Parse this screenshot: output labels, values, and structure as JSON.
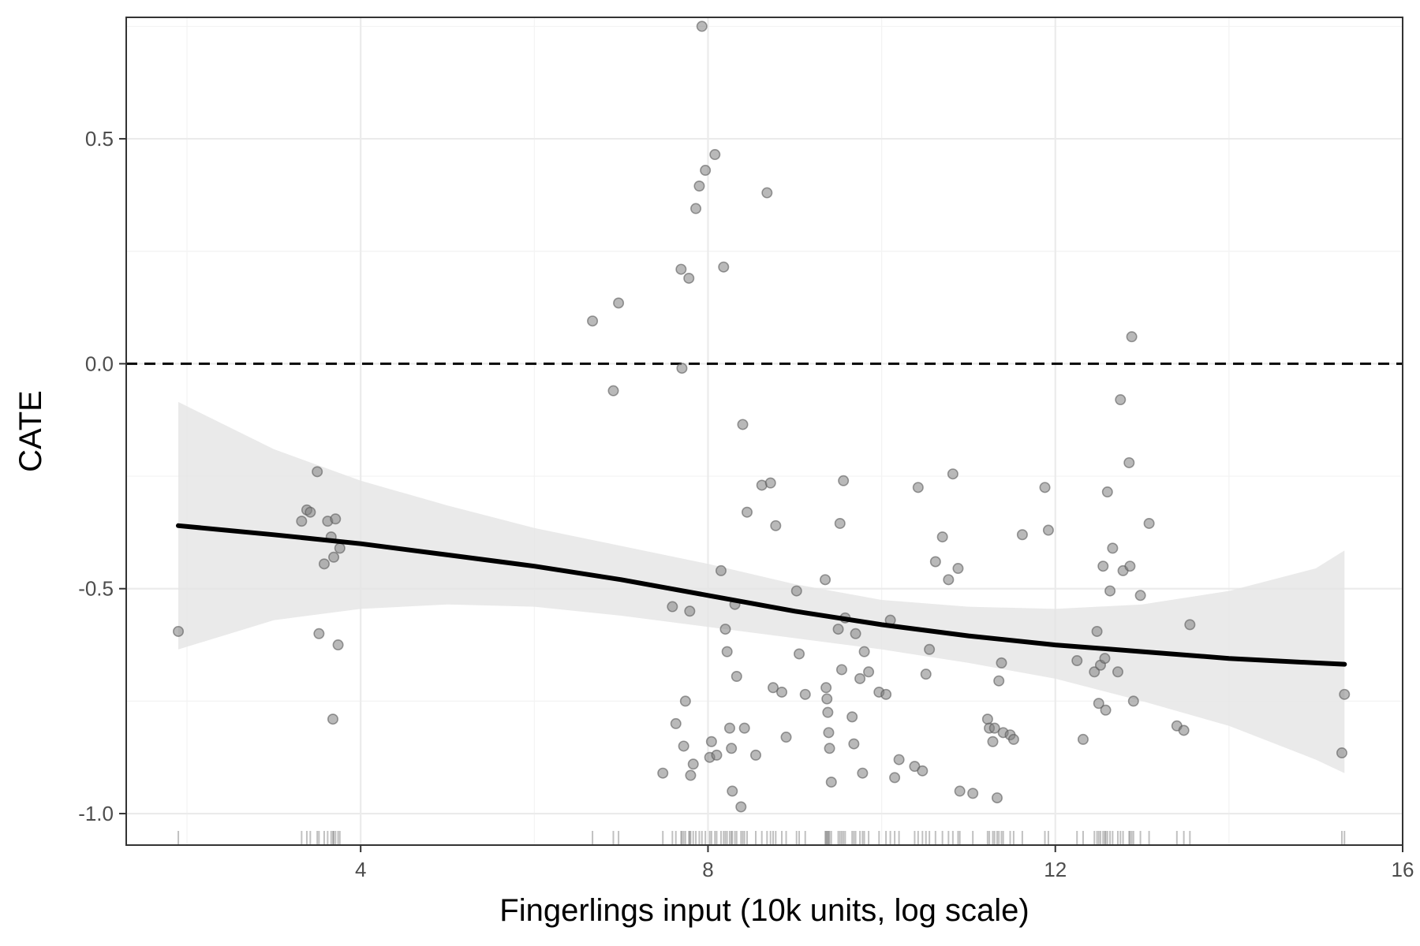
{
  "chart_data": {
    "type": "scatter",
    "title": "",
    "xlabel": "Fingerlings input (10k units, log scale)",
    "ylabel": "CATE",
    "xlim": [
      1.3,
      16
    ],
    "ylim": [
      -1.07,
      0.77
    ],
    "x_ticks": [
      4,
      8,
      12,
      16
    ],
    "y_ticks": [
      -1.0,
      -0.5,
      0.0,
      0.5
    ],
    "x_tick_labels": [
      "4",
      "8",
      "12",
      "16"
    ],
    "y_tick_labels": [
      "-1.0",
      "-0.5",
      "0.0",
      "0.5"
    ],
    "grid": true,
    "reference_line": {
      "y": 0.0,
      "style": "dashed"
    },
    "colors": {
      "points": "#808080",
      "smooth": "#000000",
      "band": "#e5e5e5",
      "rug": "#4d4d4d"
    },
    "points": [
      [
        1.9,
        -0.595
      ],
      [
        3.32,
        -0.35
      ],
      [
        3.38,
        -0.325
      ],
      [
        3.42,
        -0.33
      ],
      [
        3.5,
        -0.24
      ],
      [
        3.52,
        -0.6
      ],
      [
        3.58,
        -0.445
      ],
      [
        3.62,
        -0.35
      ],
      [
        3.66,
        -0.385
      ],
      [
        3.68,
        -0.79
      ],
      [
        3.69,
        -0.43
      ],
      [
        3.71,
        -0.345
      ],
      [
        3.74,
        -0.625
      ],
      [
        3.76,
        -0.41
      ],
      [
        6.67,
        0.095
      ],
      [
        6.91,
        -0.06
      ],
      [
        6.97,
        0.135
      ],
      [
        7.48,
        -0.91
      ],
      [
        7.59,
        -0.54
      ],
      [
        7.63,
        -0.8
      ],
      [
        7.69,
        0.21
      ],
      [
        7.7,
        -0.01
      ],
      [
        7.72,
        -0.85
      ],
      [
        7.74,
        -0.75
      ],
      [
        7.78,
        0.19
      ],
      [
        7.79,
        -0.55
      ],
      [
        7.8,
        -0.915
      ],
      [
        7.83,
        -0.89
      ],
      [
        7.86,
        0.345
      ],
      [
        7.9,
        0.395
      ],
      [
        7.93,
        0.75
      ],
      [
        7.97,
        0.43
      ],
      [
        8.02,
        -0.875
      ],
      [
        8.04,
        -0.84
      ],
      [
        8.08,
        0.465
      ],
      [
        8.1,
        -0.87
      ],
      [
        8.15,
        -0.46
      ],
      [
        8.18,
        0.215
      ],
      [
        8.2,
        -0.59
      ],
      [
        8.22,
        -0.64
      ],
      [
        8.25,
        -0.81
      ],
      [
        8.27,
        -0.855
      ],
      [
        8.28,
        -0.95
      ],
      [
        8.31,
        -0.535
      ],
      [
        8.33,
        -0.695
      ],
      [
        8.38,
        -0.985
      ],
      [
        8.4,
        -0.135
      ],
      [
        8.42,
        -0.81
      ],
      [
        8.45,
        -0.33
      ],
      [
        8.55,
        -0.87
      ],
      [
        8.62,
        -0.27
      ],
      [
        8.68,
        0.38
      ],
      [
        8.72,
        -0.265
      ],
      [
        8.75,
        -0.72
      ],
      [
        8.78,
        -0.36
      ],
      [
        8.85,
        -0.73
      ],
      [
        8.9,
        -0.83
      ],
      [
        9.02,
        -0.505
      ],
      [
        9.05,
        -0.645
      ],
      [
        9.12,
        -0.735
      ],
      [
        9.35,
        -0.48
      ],
      [
        9.36,
        -0.72
      ],
      [
        9.37,
        -0.745
      ],
      [
        9.38,
        -0.775
      ],
      [
        9.39,
        -0.82
      ],
      [
        9.4,
        -0.855
      ],
      [
        9.42,
        -0.93
      ],
      [
        9.5,
        -0.59
      ],
      [
        9.52,
        -0.355
      ],
      [
        9.54,
        -0.68
      ],
      [
        9.56,
        -0.26
      ],
      [
        9.58,
        -0.565
      ],
      [
        9.66,
        -0.785
      ],
      [
        9.68,
        -0.845
      ],
      [
        9.7,
        -0.6
      ],
      [
        9.75,
        -0.7
      ],
      [
        9.78,
        -0.91
      ],
      [
        9.8,
        -0.64
      ],
      [
        9.85,
        -0.685
      ],
      [
        9.97,
        -0.73
      ],
      [
        10.05,
        -0.735
      ],
      [
        10.1,
        -0.57
      ],
      [
        10.15,
        -0.92
      ],
      [
        10.2,
        -0.88
      ],
      [
        10.38,
        -0.895
      ],
      [
        10.42,
        -0.275
      ],
      [
        10.47,
        -0.905
      ],
      [
        10.51,
        -0.69
      ],
      [
        10.55,
        -0.635
      ],
      [
        10.62,
        -0.44
      ],
      [
        10.7,
        -0.385
      ],
      [
        10.77,
        -0.48
      ],
      [
        10.82,
        -0.245
      ],
      [
        10.88,
        -0.455
      ],
      [
        10.9,
        -0.95
      ],
      [
        11.05,
        -0.955
      ],
      [
        11.22,
        -0.79
      ],
      [
        11.24,
        -0.81
      ],
      [
        11.28,
        -0.84
      ],
      [
        11.3,
        -0.81
      ],
      [
        11.33,
        -0.965
      ],
      [
        11.35,
        -0.705
      ],
      [
        11.38,
        -0.665
      ],
      [
        11.4,
        -0.82
      ],
      [
        11.48,
        -0.825
      ],
      [
        11.52,
        -0.835
      ],
      [
        11.62,
        -0.38
      ],
      [
        11.88,
        -0.275
      ],
      [
        11.92,
        -0.37
      ],
      [
        12.25,
        -0.66
      ],
      [
        12.32,
        -0.835
      ],
      [
        12.45,
        -0.685
      ],
      [
        12.48,
        -0.595
      ],
      [
        12.5,
        -0.755
      ],
      [
        12.52,
        -0.67
      ],
      [
        12.55,
        -0.45
      ],
      [
        12.57,
        -0.655
      ],
      [
        12.58,
        -0.77
      ],
      [
        12.6,
        -0.285
      ],
      [
        12.63,
        -0.505
      ],
      [
        12.66,
        -0.41
      ],
      [
        12.72,
        -0.685
      ],
      [
        12.75,
        -0.08
      ],
      [
        12.78,
        -0.46
      ],
      [
        12.85,
        -0.22
      ],
      [
        12.86,
        -0.45
      ],
      [
        12.88,
        0.06
      ],
      [
        12.9,
        -0.75
      ],
      [
        12.98,
        -0.515
      ],
      [
        13.08,
        -0.355
      ],
      [
        13.4,
        -0.805
      ],
      [
        13.48,
        -0.815
      ],
      [
        13.55,
        -0.58
      ],
      [
        15.3,
        -0.865
      ],
      [
        15.33,
        -0.735
      ]
    ],
    "smooth_line": {
      "x": [
        1.9,
        3,
        4,
        5,
        6,
        7,
        8,
        9,
        10,
        11,
        12,
        13,
        14,
        15,
        15.33
      ],
      "y": [
        -0.36,
        -0.38,
        -0.4,
        -0.425,
        -0.45,
        -0.48,
        -0.515,
        -0.55,
        -0.58,
        -0.605,
        -0.625,
        -0.64,
        -0.655,
        -0.665,
        -0.668
      ],
      "lower": [
        -0.635,
        -0.57,
        -0.545,
        -0.535,
        -0.54,
        -0.56,
        -0.585,
        -0.61,
        -0.635,
        -0.665,
        -0.7,
        -0.75,
        -0.805,
        -0.88,
        -0.91
      ],
      "upper": [
        -0.085,
        -0.19,
        -0.26,
        -0.315,
        -0.365,
        -0.405,
        -0.445,
        -0.49,
        -0.525,
        -0.54,
        -0.545,
        -0.535,
        -0.505,
        -0.455,
        -0.415
      ]
    }
  }
}
